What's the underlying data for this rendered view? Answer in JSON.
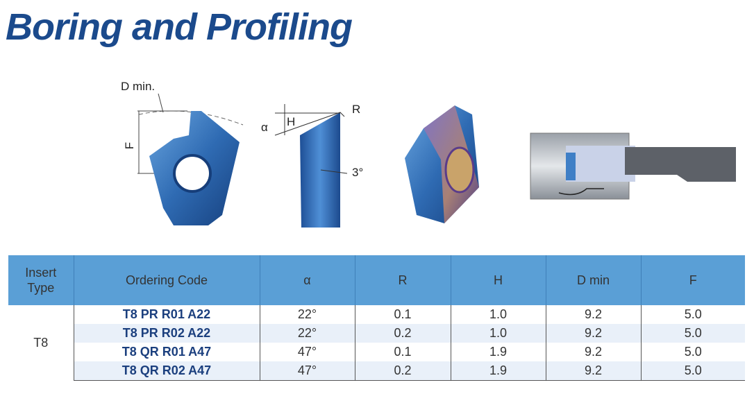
{
  "header": {
    "title": "Boring and Profiling"
  },
  "diagrams": {
    "labels": {
      "d_min": "D min.",
      "f": "F",
      "alpha": "α",
      "h": "H",
      "r": "R",
      "angle": "3°"
    }
  },
  "table": {
    "columns": [
      "Insert Type",
      "Ordering Code",
      "α",
      "R",
      "H",
      "D min",
      "F"
    ],
    "group": "T8",
    "rows": [
      [
        "T8 PR R01 A22",
        "22°",
        "0.1",
        "1.0",
        "9.2",
        "5.0"
      ],
      [
        "T8 PR R02 A22",
        "22°",
        "0.2",
        "1.0",
        "9.2",
        "5.0"
      ],
      [
        "T8 QR R01 A47",
        "47°",
        "0.1",
        "1.9",
        "9.2",
        "5.0"
      ],
      [
        "T8 QR R02 A47",
        "47°",
        "0.2",
        "1.9",
        "9.2",
        "5.0"
      ]
    ]
  }
}
